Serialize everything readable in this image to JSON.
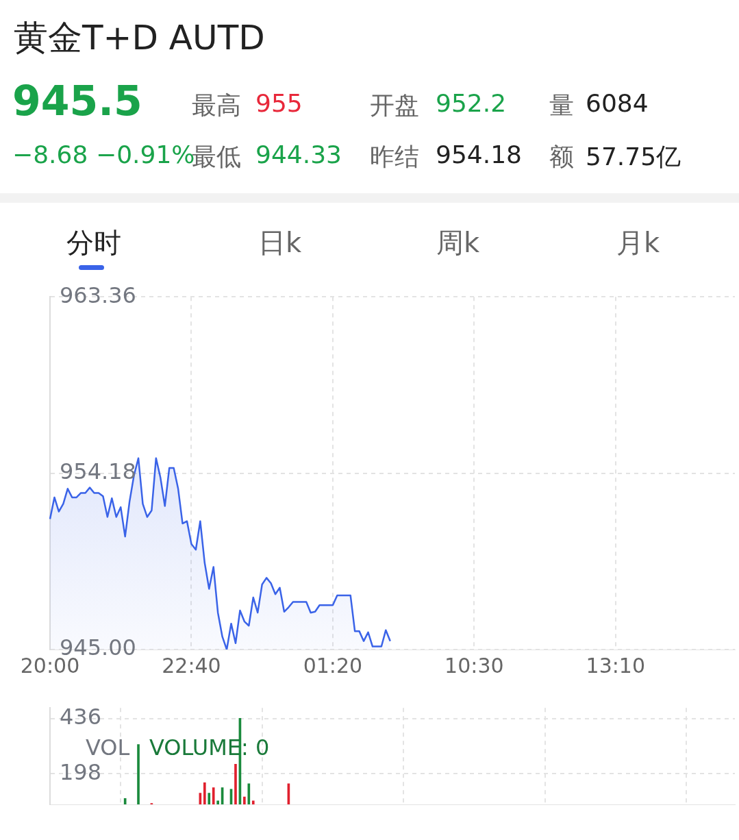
{
  "chart_data": [
    {
      "type": "area",
      "title": "黄金T+D  AUTD",
      "annotations": [
        "945.5",
        "−8.68",
        "−0.91%",
        "最高",
        "955",
        "最低",
        "944.33",
        "开盘",
        "952.2",
        "昨结",
        "954.18",
        "量",
        "6084",
        "额",
        "57.75亿",
        "分时",
        "日k",
        "周k",
        "月k"
      ],
      "categories": [
        "20:00",
        null,
        null,
        null,
        null,
        null,
        null,
        null,
        null,
        null,
        null,
        null,
        null,
        null,
        null,
        null,
        null,
        null,
        null,
        null,
        null,
        null,
        null,
        null,
        null,
        null,
        null,
        null,
        null,
        null,
        null,
        null,
        "22:40",
        null,
        null,
        null,
        null,
        null,
        null,
        null,
        null,
        null,
        null,
        null,
        null,
        null,
        null,
        null,
        null,
        null,
        null,
        null,
        null,
        null,
        null,
        null,
        null,
        null,
        null,
        null,
        null,
        null,
        null,
        null,
        "01:20",
        null,
        null,
        null,
        null,
        null,
        null,
        null,
        null,
        null,
        null,
        null,
        null,
        null,
        null,
        null,
        null,
        null,
        null,
        null,
        null,
        null,
        null,
        null,
        null,
        null,
        null,
        null,
        null,
        null,
        null,
        null,
        "10:30",
        null,
        null,
        null,
        null,
        null,
        null,
        null,
        null,
        null,
        null,
        null,
        null,
        null,
        null,
        null,
        null,
        null,
        null,
        null,
        null,
        null,
        null,
        null,
        null,
        null,
        null,
        null,
        null,
        null,
        null,
        null,
        "13:10",
        null,
        null,
        null,
        null,
        null,
        null,
        null,
        null,
        null,
        null,
        null,
        null,
        null,
        null,
        null,
        null,
        null,
        null,
        null,
        null,
        null,
        null,
        null,
        null,
        null,
        null,
        null
      ],
      "values": [
        951.79,
        952.92,
        952.18,
        952.58,
        953.37,
        952.92,
        952.92,
        953.15,
        953.15,
        953.43,
        953.15,
        953.15,
        952.98,
        951.9,
        952.87,
        951.9,
        952.41,
        950.88,
        952.7,
        954.06,
        954.96,
        952.58,
        951.9,
        952.24,
        954.96,
        953.94,
        952.47,
        954.45,
        954.45,
        953.37,
        951.56,
        951.68,
        950.49,
        950.2,
        951.68,
        949.52,
        948.16,
        949.3,
        946.92,
        945.67,
        945.0,
        946.35,
        945.33,
        947.03,
        946.46,
        946.24,
        947.71,
        946.92,
        948.39,
        948.73,
        948.45,
        947.88,
        948.22,
        946.97,
        947.2,
        947.48,
        947.48,
        947.48,
        947.48,
        946.92,
        946.97,
        947.31,
        947.31,
        947.31,
        947.31,
        947.82,
        947.82,
        947.82,
        947.82,
        945.95,
        945.95,
        945.44,
        945.9,
        945.16,
        945.16,
        945.16,
        946.01,
        945.44,
        null,
        null,
        null,
        null,
        null,
        null,
        null,
        null,
        null,
        null,
        null,
        null,
        null,
        null,
        null,
        null,
        null,
        null,
        null,
        null,
        null,
        null,
        null,
        null,
        null,
        null,
        null,
        null,
        null,
        null,
        null,
        null,
        null,
        null,
        null,
        null,
        null,
        null,
        null,
        null,
        null,
        null,
        null,
        null,
        null,
        null,
        null,
        null,
        null,
        null,
        null,
        null,
        null,
        null,
        null,
        null,
        null,
        null,
        null,
        null,
        null,
        null,
        null,
        null,
        null,
        null,
        null,
        null,
        null,
        null,
        null,
        null,
        null,
        null,
        null,
        null,
        null,
        null
      ],
      "color": "#3a63e8",
      "ylim": [
        945.0,
        963.36
      ],
      "yticks": [
        {
          "value": 945,
          "label": "945.00"
        },
        954.18,
        963.36
      ],
      "grid": true
    },
    {
      "type": "bar",
      "annotations": [
        "VOL",
        "VOLUME: 0"
      ],
      "categories": [
        null,
        null,
        null,
        null,
        null,
        null,
        null,
        null,
        null,
        null,
        null,
        null,
        null,
        null,
        null,
        null,
        null,
        null,
        null,
        null,
        null,
        null,
        null,
        null,
        null,
        null,
        null,
        null,
        null,
        null,
        null,
        null,
        null,
        null,
        null,
        null,
        null,
        null,
        null,
        null,
        null,
        null,
        null,
        null,
        null,
        null,
        null,
        null,
        null,
        null,
        null,
        null,
        null,
        null,
        null,
        null,
        null,
        null,
        null,
        null,
        null,
        null,
        null,
        null,
        null,
        null,
        null,
        null,
        null,
        null,
        null,
        null,
        null,
        null,
        null,
        null,
        null,
        null,
        null,
        null,
        null,
        null,
        null,
        null,
        null,
        null,
        null,
        null,
        null,
        null,
        null,
        null,
        null,
        null,
        null,
        null,
        null,
        null,
        null,
        null,
        null,
        null,
        null,
        null,
        null,
        null,
        null,
        null,
        null,
        null,
        null,
        null,
        null,
        null,
        null,
        null,
        null,
        null,
        null,
        null,
        null,
        null,
        null,
        null,
        null,
        null,
        null,
        null,
        null,
        null,
        null,
        null,
        null,
        null,
        null,
        null,
        null,
        null,
        null,
        null,
        null,
        null,
        null,
        null,
        null,
        null,
        null,
        null,
        null,
        null,
        null,
        null,
        null,
        null,
        null,
        null
      ],
      "values": [
        null,
        null,
        null,
        null,
        null,
        null,
        null,
        null,
        null,
        null,
        null,
        null,
        null,
        null,
        null,
        null,
        null,
        92,
        null,
        null,
        325,
        null,
        null,
        70,
        null,
        null,
        null,
        null,
        null,
        null,
        null,
        null,
        null,
        null,
        115,
        160,
        115,
        138,
        81,
        138,
        null,
        132,
        240,
        438,
        98,
        155,
        81,
        null,
        null,
        null,
        null,
        null,
        null,
        null,
        155,
        null,
        null,
        null,
        null,
        null,
        null,
        null,
        null,
        null,
        null,
        null,
        null,
        null,
        null,
        null,
        null,
        null,
        null,
        null,
        null,
        null,
        null,
        null,
        null,
        null,
        null,
        null,
        null,
        null,
        null,
        null,
        null,
        null,
        null,
        null,
        null,
        null,
        null,
        null,
        null,
        null,
        null,
        null,
        null,
        null,
        null,
        null,
        null,
        null,
        null,
        null,
        null,
        null,
        null,
        null,
        null,
        null,
        null,
        null,
        null,
        null,
        null,
        null,
        null,
        null,
        null,
        null,
        null,
        null,
        null,
        null,
        null,
        null,
        null,
        null,
        null,
        null,
        null,
        null,
        null,
        null,
        null,
        null,
        null,
        null,
        null,
        null,
        null,
        null,
        null,
        null,
        null,
        null,
        null,
        null,
        null,
        null,
        null,
        null,
        null,
        null
      ],
      "colors": [
        null,
        null,
        null,
        null,
        null,
        null,
        null,
        null,
        null,
        null,
        null,
        null,
        null,
        null,
        null,
        null,
        null,
        "#1a8a3c",
        null,
        null,
        "#1a8a3c",
        null,
        null,
        "#e0202e",
        null,
        null,
        null,
        null,
        null,
        null,
        null,
        null,
        null,
        null,
        "#e0202e",
        "#e0202e",
        "#1a8a3c",
        "#e0202e",
        "#1a8a3c",
        "#1a8a3c",
        null,
        "#1a8a3c",
        "#e0202e",
        "#1a8a3c",
        "#e0202e",
        "#1a8a3c",
        "#e0202e",
        null,
        null,
        null,
        null,
        null,
        null,
        null,
        "#e0202e",
        null,
        null,
        null,
        null,
        null,
        null,
        null,
        null,
        null,
        null,
        null,
        null,
        null,
        null,
        null,
        null,
        null,
        null,
        null,
        null,
        null,
        null,
        null,
        null,
        null,
        null,
        null,
        null,
        null,
        null,
        null,
        null,
        null,
        null,
        null,
        null,
        null,
        null,
        null,
        null,
        null,
        null,
        null,
        null,
        null,
        null,
        null,
        null,
        null,
        null,
        null,
        null,
        null,
        null,
        null,
        null,
        null,
        null,
        null,
        null,
        null,
        null,
        null,
        null,
        null,
        null,
        null,
        null,
        null,
        null,
        null,
        null,
        null,
        null,
        null,
        null,
        null,
        null,
        null,
        null,
        null,
        null,
        null,
        null,
        null,
        null,
        null,
        null,
        null,
        null,
        null,
        null,
        null,
        null,
        null,
        null,
        null,
        null,
        null,
        null,
        null
      ],
      "ylim": [
        66,
        483
      ],
      "yticks": [
        198,
        436
      ],
      "grid": true
    }
  ]
}
